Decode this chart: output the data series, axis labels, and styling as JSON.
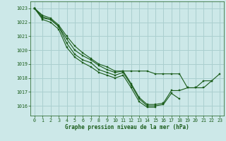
{
  "title": "Graphe pression niveau de la mer (hPa)",
  "bg_color": "#cce8e8",
  "grid_color": "#aacfcf",
  "line_color": "#1a5c1a",
  "marker_color": "#1a5c1a",
  "xlim": [
    -0.5,
    23.5
  ],
  "ylim": [
    1015.3,
    1023.5
  ],
  "yticks": [
    1016,
    1017,
    1018,
    1019,
    1020,
    1021,
    1022,
    1023
  ],
  "xticks": [
    0,
    1,
    2,
    3,
    4,
    5,
    6,
    7,
    8,
    9,
    10,
    11,
    12,
    13,
    14,
    15,
    16,
    17,
    18,
    19,
    20,
    21,
    22,
    23
  ],
  "series": [
    [
      1023.0,
      1022.5,
      1022.3,
      1021.8,
      1021.0,
      1020.3,
      1019.8,
      1019.4,
      1019.0,
      1018.8,
      1018.5,
      1018.5,
      1018.5,
      1018.5,
      1018.5,
      1018.3,
      1018.3,
      1018.3,
      1018.3,
      1017.3,
      1017.3,
      1017.3,
      1017.8,
      1018.3
    ],
    [
      1023.0,
      1022.4,
      1022.2,
      1021.7,
      1020.8,
      1020.0,
      1019.6,
      1019.3,
      1018.9,
      1018.6,
      1018.4,
      1018.5,
      1017.6,
      1016.6,
      1016.1,
      1016.1,
      1016.2,
      1017.1,
      1017.1,
      1017.3,
      1017.3,
      1017.8,
      1017.8,
      null
    ],
    [
      1023.0,
      1022.3,
      1022.2,
      1021.7,
      1020.5,
      1019.7,
      1019.3,
      1019.1,
      1018.6,
      1018.4,
      1018.2,
      1018.4,
      1017.5,
      1016.5,
      1016.0,
      1016.0,
      1016.1,
      1016.9,
      1016.5,
      null,
      null,
      null,
      null,
      null
    ],
    [
      1023.0,
      1022.2,
      1022.0,
      1021.5,
      1020.2,
      1019.5,
      1019.1,
      1018.8,
      1018.4,
      1018.2,
      1018.0,
      1018.2,
      1017.3,
      1016.3,
      1015.9,
      1015.9,
      null,
      null,
      null,
      null,
      null,
      null,
      null,
      null
    ]
  ],
  "label_fontsize": 5.5,
  "tick_fontsize": 4.8
}
